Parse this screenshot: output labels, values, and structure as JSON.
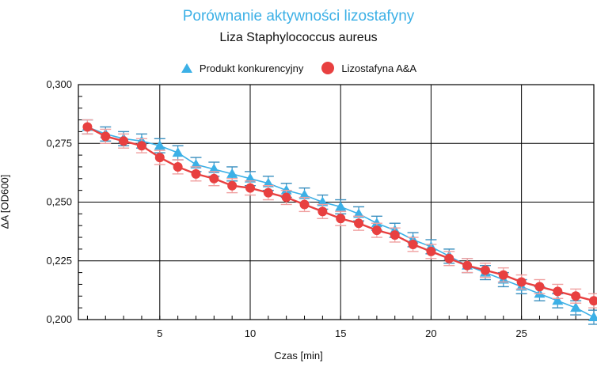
{
  "chart_data": {
    "type": "line",
    "title": "Porównanie aktywności lizostafyny",
    "subtitle": "Liza Staphylococcus aureus",
    "xlabel": "Czas [min]",
    "ylabel": "ΔA [OD600]",
    "xlim": [
      0.5,
      29
    ],
    "ylim": [
      0.2,
      0.3
    ],
    "xticks": [
      5,
      10,
      15,
      20,
      25
    ],
    "yticks": [
      0.2,
      0.225,
      0.25,
      0.275,
      0.3
    ],
    "ytick_labels": [
      "0,200",
      "0,225",
      "0,250",
      "0,275",
      "0,300"
    ],
    "grid": true,
    "legend_position": "top-center",
    "x": [
      1,
      2,
      3,
      4,
      5,
      6,
      7,
      8,
      9,
      10,
      11,
      12,
      13,
      14,
      15,
      16,
      17,
      18,
      19,
      20,
      21,
      22,
      23,
      24,
      25,
      26,
      27,
      28,
      29
    ],
    "series": [
      {
        "name": "Produkt konkurencyjny",
        "marker": "triangle",
        "color": "#3cb0e6",
        "values": [
          0.282,
          0.279,
          0.277,
          0.276,
          0.274,
          0.271,
          0.266,
          0.264,
          0.262,
          0.26,
          0.258,
          0.255,
          0.253,
          0.25,
          0.248,
          0.245,
          0.241,
          0.238,
          0.234,
          0.231,
          0.227,
          0.223,
          0.22,
          0.217,
          0.214,
          0.211,
          0.208,
          0.205,
          0.201
        ],
        "error": [
          0.003,
          0.003,
          0.003,
          0.003,
          0.003,
          0.003,
          0.003,
          0.003,
          0.003,
          0.003,
          0.003,
          0.003,
          0.003,
          0.003,
          0.003,
          0.003,
          0.003,
          0.003,
          0.003,
          0.003,
          0.003,
          0.003,
          0.003,
          0.003,
          0.003,
          0.003,
          0.003,
          0.003,
          0.003
        ]
      },
      {
        "name": "Lizostafyna A&A",
        "marker": "circle",
        "color": "#e84040",
        "values": [
          0.282,
          0.278,
          0.276,
          0.274,
          0.269,
          0.265,
          0.262,
          0.26,
          0.257,
          0.256,
          0.254,
          0.252,
          0.249,
          0.246,
          0.243,
          0.241,
          0.238,
          0.236,
          0.232,
          0.229,
          0.226,
          0.223,
          0.221,
          0.219,
          0.216,
          0.214,
          0.212,
          0.21,
          0.208
        ],
        "error": [
          0.003,
          0.003,
          0.003,
          0.003,
          0.003,
          0.003,
          0.003,
          0.003,
          0.003,
          0.003,
          0.003,
          0.003,
          0.003,
          0.003,
          0.003,
          0.003,
          0.003,
          0.003,
          0.003,
          0.003,
          0.003,
          0.003,
          0.003,
          0.003,
          0.003,
          0.003,
          0.003,
          0.003,
          0.003
        ]
      }
    ]
  }
}
